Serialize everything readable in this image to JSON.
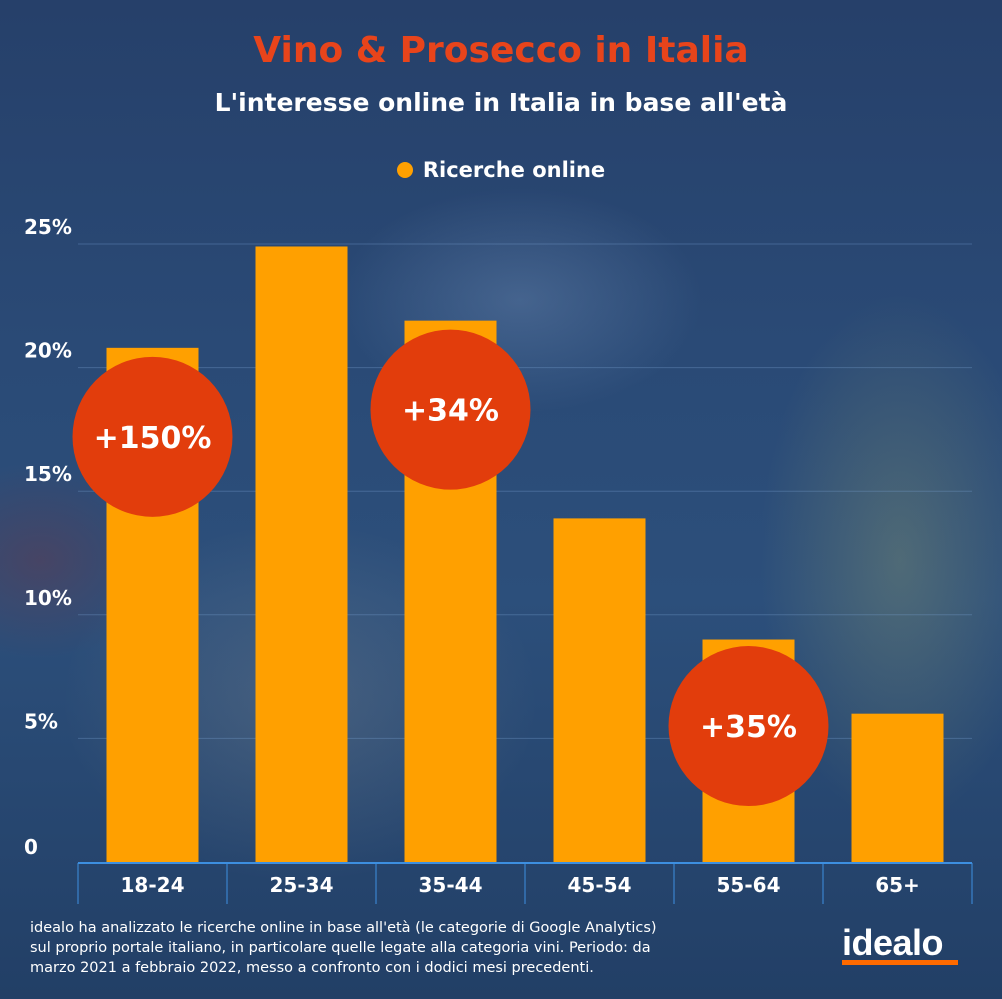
{
  "title": "Vino & Prosecco in Italia",
  "subtitle": "L'interesse online in Italia in base all'età",
  "legend": {
    "label": "Ricerche online"
  },
  "colors": {
    "bar": "#ffa000",
    "bubble": "#e23d0c",
    "title": "#e8441b",
    "axis": "#3d8fe0",
    "logo_bar": "#ff6a00"
  },
  "chart_data": {
    "type": "bar",
    "categories": [
      "18-24",
      "25-34",
      "35-44",
      "45-54",
      "55-64",
      "65+"
    ],
    "series": [
      {
        "name": "Ricerche online",
        "values": [
          20.8,
          24.9,
          21.9,
          13.9,
          9.0,
          6.0
        ]
      }
    ],
    "ylim": [
      0,
      25
    ],
    "yticks": [
      0,
      5,
      10,
      15,
      20,
      25
    ],
    "ytick_labels": [
      "0",
      "5%",
      "10%",
      "15%",
      "20%",
      "25%"
    ],
    "grid": true,
    "legend_position": "top-center",
    "annotations": [
      {
        "category": "18-24",
        "text": "+150%",
        "at_value": 17.2
      },
      {
        "category": "35-44",
        "text": "+34%",
        "at_value": 18.3
      },
      {
        "category": "55-64",
        "text": "+35%",
        "at_value": 5.5
      }
    ]
  },
  "footnote": "idealo ha analizzato le ricerche online in base all'età (le categorie di Google Analytics) sul proprio portale italiano, in particolare quelle legate alla categoria vini. Periodo: da marzo 2021 a febbraio 2022, messo a confronto con i dodici mesi precedenti.",
  "brand": {
    "name": "idealo"
  }
}
